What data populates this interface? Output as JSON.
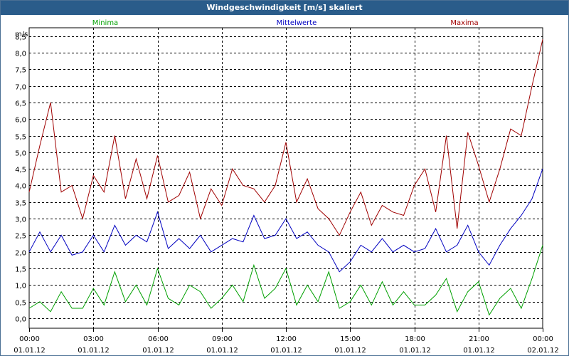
{
  "window": {
    "title": "Windgeschwindigkeit [m/s] skaliert"
  },
  "chart_data": {
    "type": "line",
    "title": "Windgeschwindigkeit [m/s] skaliert",
    "ylabel": "m/s",
    "xlabel": "",
    "ylim": [
      -0.3,
      8.75
    ],
    "yticks": [
      "0,0",
      "0,5",
      "1,0",
      "1,5",
      "2,0",
      "2,5",
      "3,0",
      "3,5",
      "4,0",
      "4,5",
      "5,0",
      "5,5",
      "6,0",
      "6,5",
      "7,0",
      "7,5",
      "8,0",
      "8,5"
    ],
    "xticks": [
      {
        "time": "00:00",
        "date": "01.01.12"
      },
      {
        "time": "03:00",
        "date": "01.01.12"
      },
      {
        "time": "06:00",
        "date": "01.01.12"
      },
      {
        "time": "09:00",
        "date": "01.01.12"
      },
      {
        "time": "12:00",
        "date": "01.01.12"
      },
      {
        "time": "15:00",
        "date": "01.01.12"
      },
      {
        "time": "18:00",
        "date": "01.01.12"
      },
      {
        "time": "21:00",
        "date": "01.01.12"
      },
      {
        "time": "00:00",
        "date": "02.01.12"
      }
    ],
    "x_hours_range": [
      0,
      24
    ],
    "grid": true,
    "series": [
      {
        "name": "Minima",
        "color": "#00a000",
        "legend_pos": "left",
        "x": [
          0,
          0.5,
          1,
          1.5,
          2,
          2.5,
          3,
          3.5,
          4,
          4.5,
          5,
          5.5,
          6,
          6.5,
          7,
          7.5,
          8,
          8.5,
          9,
          9.5,
          10,
          10.5,
          11,
          11.5,
          12,
          12.5,
          13,
          13.5,
          14,
          14.5,
          15,
          15.5,
          16,
          16.5,
          17,
          17.5,
          18,
          18.5,
          19,
          19.5,
          20,
          20.5,
          21,
          21.5,
          22,
          22.5,
          23,
          23.5,
          24
        ],
        "values": [
          0.3,
          0.5,
          0.2,
          0.8,
          0.3,
          0.3,
          0.9,
          0.4,
          1.4,
          0.5,
          1.0,
          0.4,
          1.5,
          0.6,
          0.4,
          1.0,
          0.8,
          0.3,
          0.6,
          1.0,
          0.5,
          1.6,
          0.6,
          0.9,
          1.5,
          0.4,
          1.0,
          0.5,
          1.4,
          0.3,
          0.5,
          1.0,
          0.4,
          1.1,
          0.4,
          0.8,
          0.4,
          0.4,
          0.7,
          1.2,
          0.2,
          0.8,
          1.1,
          0.1,
          0.6,
          0.9,
          0.3,
          1.2,
          2.2
        ]
      },
      {
        "name": "Mittelwerte",
        "color": "#0000c0",
        "legend_pos": "center",
        "x": [
          0,
          0.5,
          1,
          1.5,
          2,
          2.5,
          3,
          3.5,
          4,
          4.5,
          5,
          5.5,
          6,
          6.5,
          7,
          7.5,
          8,
          8.5,
          9,
          9.5,
          10,
          10.5,
          11,
          11.5,
          12,
          12.5,
          13,
          13.5,
          14,
          14.5,
          15,
          15.5,
          16,
          16.5,
          17,
          17.5,
          18,
          18.5,
          19,
          19.5,
          20,
          20.5,
          21,
          21.5,
          22,
          22.5,
          23,
          23.5,
          24
        ],
        "values": [
          2.0,
          2.6,
          2.0,
          2.5,
          1.9,
          2.0,
          2.5,
          2.0,
          2.8,
          2.2,
          2.5,
          2.3,
          3.2,
          2.1,
          2.4,
          2.1,
          2.5,
          2.0,
          2.2,
          2.4,
          2.3,
          3.1,
          2.4,
          2.5,
          3.0,
          2.4,
          2.6,
          2.2,
          2.0,
          1.4,
          1.7,
          2.2,
          2.0,
          2.4,
          2.0,
          2.2,
          2.0,
          2.1,
          2.7,
          2.0,
          2.2,
          2.8,
          2.0,
          1.6,
          2.2,
          2.7,
          3.1,
          3.6,
          4.5
        ]
      },
      {
        "name": "Maxima",
        "color": "#a00000",
        "legend_pos": "right",
        "x": [
          0,
          0.5,
          1,
          1.5,
          2,
          2.5,
          3,
          3.5,
          4,
          4.5,
          5,
          5.5,
          6,
          6.5,
          7,
          7.5,
          8,
          8.5,
          9,
          9.5,
          10,
          10.5,
          11,
          11.5,
          12,
          12.5,
          13,
          13.5,
          14,
          14.5,
          15,
          15.5,
          16,
          16.5,
          17,
          17.5,
          18,
          18.5,
          19,
          19.5,
          20,
          20.5,
          21,
          21.5,
          22,
          22.5,
          23,
          23.5,
          24
        ],
        "values": [
          3.8,
          5.2,
          6.5,
          3.8,
          4.0,
          3.0,
          4.3,
          3.8,
          5.5,
          3.6,
          4.8,
          3.6,
          4.9,
          3.5,
          3.7,
          4.4,
          3.0,
          3.9,
          3.4,
          4.5,
          4.0,
          3.9,
          3.5,
          4.0,
          5.3,
          3.5,
          4.2,
          3.3,
          3.0,
          2.5,
          3.2,
          3.8,
          2.8,
          3.4,
          3.2,
          3.1,
          4.0,
          4.5,
          3.2,
          5.5,
          2.7,
          5.6,
          4.6,
          3.5,
          4.5,
          5.7,
          5.5,
          7.0,
          8.4
        ]
      }
    ]
  }
}
